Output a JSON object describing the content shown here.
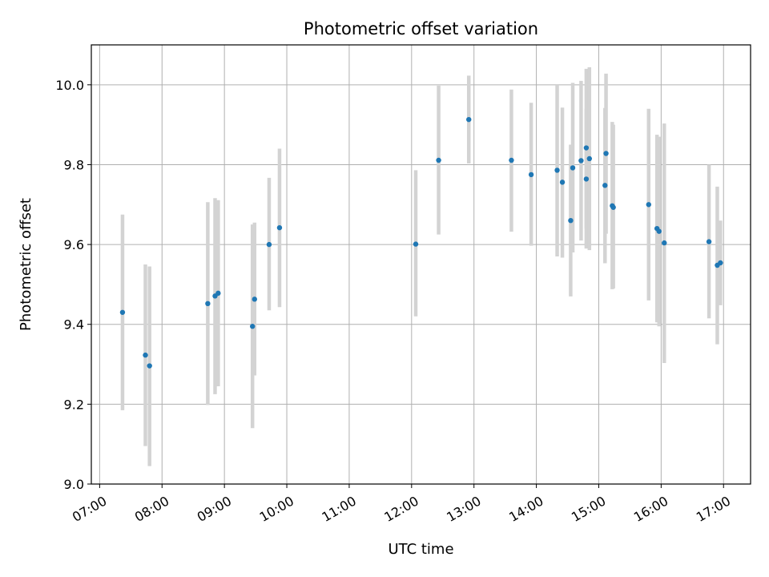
{
  "chart_data": {
    "type": "scatter",
    "title": "Photometric offset variation",
    "xlabel": "UTC time",
    "ylabel": "Photometric offset",
    "x_unit": "UTC time (HH:MM)",
    "xlim": [
      "06:52",
      "17:26"
    ],
    "ylim": [
      9.0,
      10.1
    ],
    "x_ticks": [
      "07:00",
      "08:00",
      "09:00",
      "10:00",
      "11:00",
      "12:00",
      "13:00",
      "14:00",
      "15:00",
      "16:00",
      "17:00"
    ],
    "y_ticks": [
      "9.0",
      "9.2",
      "9.4",
      "9.6",
      "9.8",
      "10.0"
    ],
    "grid": true,
    "point_color": "#1f77b4",
    "errorbar_color": "#d3d3d3",
    "points": [
      {
        "x": "07:22",
        "y": 9.43,
        "ylo": 9.185,
        "yhi": 9.675
      },
      {
        "x": "07:44",
        "y": 9.323,
        "ylo": 9.095,
        "yhi": 9.55
      },
      {
        "x": "07:48",
        "y": 9.296,
        "ylo": 9.045,
        "yhi": 9.545
      },
      {
        "x": "08:44",
        "y": 9.452,
        "ylo": 9.198,
        "yhi": 9.706
      },
      {
        "x": "08:51",
        "y": 9.471,
        "ylo": 9.225,
        "yhi": 9.716
      },
      {
        "x": "08:54",
        "y": 9.478,
        "ylo": 9.245,
        "yhi": 9.711
      },
      {
        "x": "09:27",
        "y": 9.395,
        "ylo": 9.14,
        "yhi": 9.65
      },
      {
        "x": "09:29",
        "y": 9.463,
        "ylo": 9.272,
        "yhi": 9.655
      },
      {
        "x": "09:43",
        "y": 9.6,
        "ylo": 9.435,
        "yhi": 9.767
      },
      {
        "x": "09:53",
        "y": 9.642,
        "ylo": 9.443,
        "yhi": 9.84
      },
      {
        "x": "12:04",
        "y": 9.601,
        "ylo": 9.42,
        "yhi": 9.786
      },
      {
        "x": "12:26",
        "y": 9.811,
        "ylo": 9.625,
        "yhi": 9.998
      },
      {
        "x": "12:55",
        "y": 9.913,
        "ylo": 9.803,
        "yhi": 10.023
      },
      {
        "x": "13:36",
        "y": 9.811,
        "ylo": 9.632,
        "yhi": 9.988
      },
      {
        "x": "13:55",
        "y": 9.775,
        "ylo": 9.597,
        "yhi": 9.955
      },
      {
        "x": "14:20",
        "y": 9.786,
        "ylo": 9.57,
        "yhi": 10.0
      },
      {
        "x": "14:25",
        "y": 9.756,
        "ylo": 9.567,
        "yhi": 9.943
      },
      {
        "x": "14:33",
        "y": 9.66,
        "ylo": 9.47,
        "yhi": 9.85
      },
      {
        "x": "14:35",
        "y": 9.792,
        "ylo": 9.58,
        "yhi": 10.005
      },
      {
        "x": "14:43",
        "y": 9.81,
        "ylo": 9.61,
        "yhi": 10.01
      },
      {
        "x": "14:48",
        "y": 9.842,
        "ylo": 9.64,
        "yhi": 10.04
      },
      {
        "x": "14:48",
        "y": 9.764,
        "ylo": 9.59,
        "yhi": 9.94
      },
      {
        "x": "14:51",
        "y": 9.815,
        "ylo": 9.586,
        "yhi": 10.044
      },
      {
        "x": "15:06",
        "y": 9.748,
        "ylo": 9.553,
        "yhi": 9.942
      },
      {
        "x": "15:07",
        "y": 9.828,
        "ylo": 9.627,
        "yhi": 10.028
      },
      {
        "x": "15:13",
        "y": 9.697,
        "ylo": 9.488,
        "yhi": 9.907
      },
      {
        "x": "15:14",
        "y": 9.693,
        "ylo": 9.49,
        "yhi": 9.9
      },
      {
        "x": "15:48",
        "y": 9.7,
        "ylo": 9.46,
        "yhi": 9.94
      },
      {
        "x": "15:56",
        "y": 9.64,
        "ylo": 9.405,
        "yhi": 9.875
      },
      {
        "x": "15:58",
        "y": 9.633,
        "ylo": 9.395,
        "yhi": 9.87
      },
      {
        "x": "16:03",
        "y": 9.604,
        "ylo": 9.303,
        "yhi": 9.903
      },
      {
        "x": "16:46",
        "y": 9.607,
        "ylo": 9.415,
        "yhi": 9.8
      },
      {
        "x": "16:54",
        "y": 9.548,
        "ylo": 9.35,
        "yhi": 9.745
      },
      {
        "x": "16:57",
        "y": 9.554,
        "ylo": 9.448,
        "yhi": 9.66
      }
    ]
  }
}
